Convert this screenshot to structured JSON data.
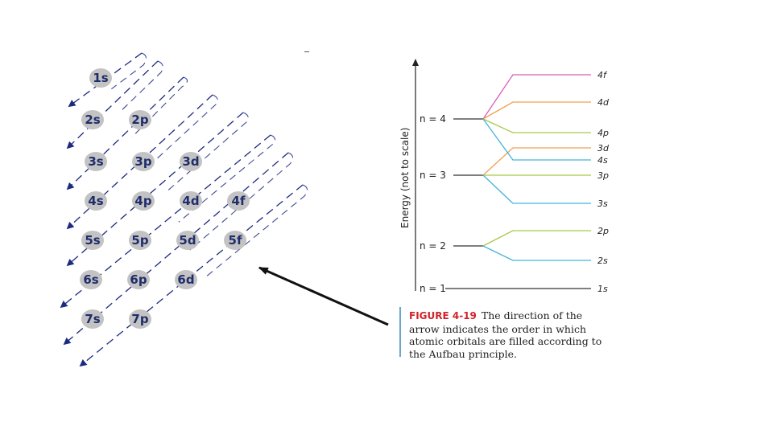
{
  "aufbau": {
    "orbitals": [
      {
        "label": "1s"
      },
      {
        "label": "2s"
      },
      {
        "label": "2p"
      },
      {
        "label": "3s"
      },
      {
        "label": "3p"
      },
      {
        "label": "3d"
      },
      {
        "label": "4s"
      },
      {
        "label": "4p"
      },
      {
        "label": "4d"
      },
      {
        "label": "4f"
      },
      {
        "label": "5s"
      },
      {
        "label": "5p"
      },
      {
        "label": "5d"
      },
      {
        "label": "5f"
      },
      {
        "label": "6s"
      },
      {
        "label": "6p"
      },
      {
        "label": "6d"
      },
      {
        "label": "7s"
      },
      {
        "label": "7p"
      }
    ],
    "arrow_color": "#1c2a80"
  },
  "energy_diagram": {
    "axis_label": "Energy (not to scale)",
    "shells": [
      {
        "label": "n = 4"
      },
      {
        "label": "n = 3"
      },
      {
        "label": "n = 2"
      },
      {
        "label": "n = 1"
      }
    ],
    "levels": [
      {
        "label": "4f",
        "color": "#d65fb5"
      },
      {
        "label": "4d",
        "color": "#f0a050"
      },
      {
        "label": "4p",
        "color": "#a6c948"
      },
      {
        "label": "3d",
        "color": "#f0a050"
      },
      {
        "label": "4s",
        "color": "#45b5d9"
      },
      {
        "label": "3p",
        "color": "#a6c948"
      },
      {
        "label": "3s",
        "color": "#45b5d9"
      },
      {
        "label": "2p",
        "color": "#a6c948"
      },
      {
        "label": "2s",
        "color": "#45b5d9"
      },
      {
        "label": "1s",
        "color": "#333333"
      }
    ]
  },
  "caption": {
    "figure_label": "FIGURE 4-19",
    "text": "The direction of the arrow indicates the order in which atomic orbitals are filled according to the Aufbau principle."
  }
}
